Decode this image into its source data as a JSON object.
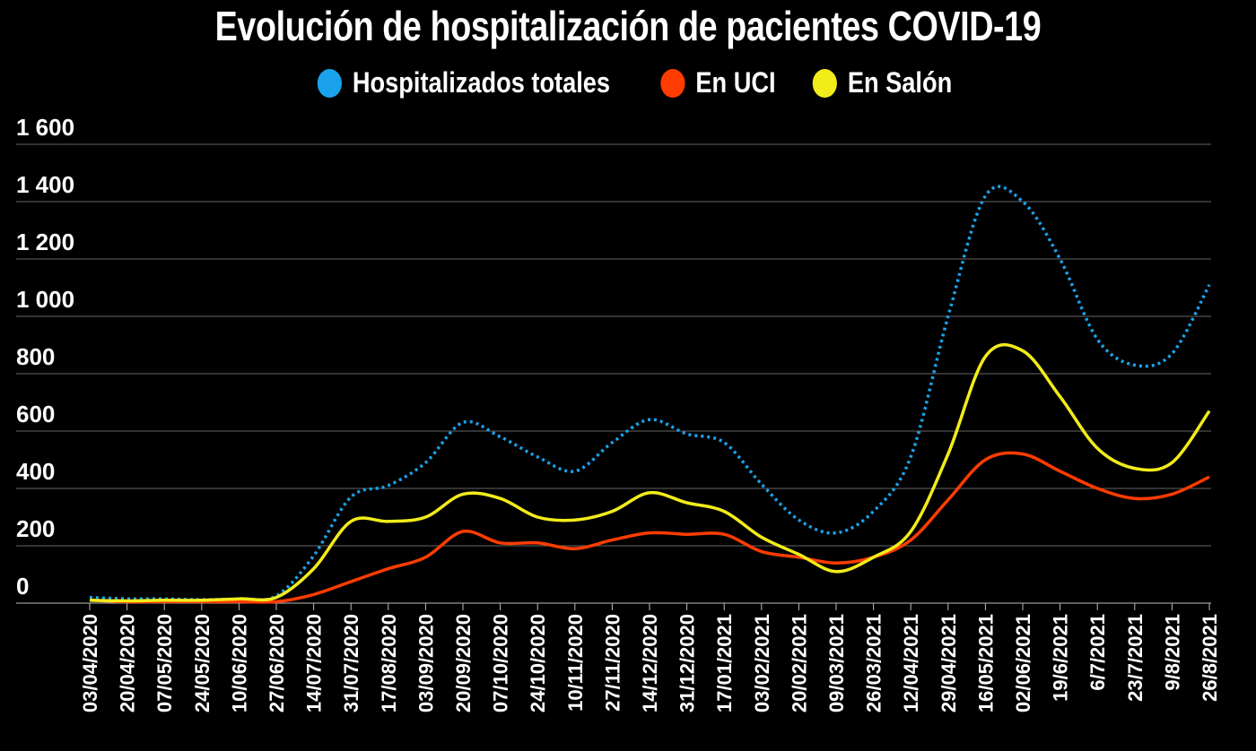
{
  "chart_data": {
    "type": "line",
    "title": "Evolución de hospitalización de pacientes COVID-19",
    "xlabel": "",
    "ylabel": "",
    "ylim": [
      0,
      1600
    ],
    "yticks": [
      0,
      200,
      400,
      600,
      800,
      1000,
      1200,
      1400,
      1600
    ],
    "ytick_labels": [
      "0",
      "200",
      "400",
      "600",
      "800",
      "1 000",
      "1 200",
      "1 400",
      "1 600"
    ],
    "grid": true,
    "legend_position": "top-center",
    "categories": [
      "03/04/2020",
      "20/04/2020",
      "07/05/2020",
      "24/05/2020",
      "10/06/2020",
      "27/06/2020",
      "14/07/2020",
      "31/07/2020",
      "17/08/2020",
      "03/09/2020",
      "20/09/2020",
      "07/10/2020",
      "24/10/2020",
      "10/11/2020",
      "27/11/2020",
      "14/12/2020",
      "31/12/2020",
      "17/01/2021",
      "03/02/2021",
      "20/02/2021",
      "09/03/2021",
      "26/03/2021",
      "12/04/2021",
      "29/04/2021",
      "16/05/2021",
      "02/06/2021",
      "19/6/2021",
      "6/7/2021",
      "23/7/2021",
      "9/8/2021",
      "26/8/2021"
    ],
    "series": [
      {
        "name": "Hospitalizados totales",
        "color": "#1aa3ea",
        "style": "dotted",
        "values": [
          20,
          15,
          15,
          12,
          15,
          25,
          165,
          370,
          410,
          490,
          630,
          580,
          510,
          460,
          560,
          640,
          590,
          560,
          415,
          290,
          245,
          320,
          510,
          1000,
          1420,
          1400,
          1200,
          920,
          830,
          870,
          1110
        ]
      },
      {
        "name": "En UCI",
        "color": "#ff3c00",
        "style": "solid",
        "values": [
          10,
          5,
          5,
          5,
          5,
          5,
          30,
          75,
          120,
          160,
          250,
          210,
          210,
          190,
          220,
          245,
          240,
          240,
          180,
          160,
          140,
          160,
          220,
          360,
          500,
          520,
          460,
          400,
          365,
          380,
          440
        ]
      },
      {
        "name": "En Salón",
        "color": "#f2ec1a",
        "style": "solid",
        "values": [
          10,
          8,
          10,
          10,
          15,
          20,
          120,
          285,
          285,
          300,
          380,
          365,
          300,
          290,
          320,
          385,
          350,
          320,
          230,
          170,
          110,
          160,
          250,
          520,
          860,
          880,
          720,
          540,
          470,
          490,
          670
        ]
      }
    ]
  }
}
